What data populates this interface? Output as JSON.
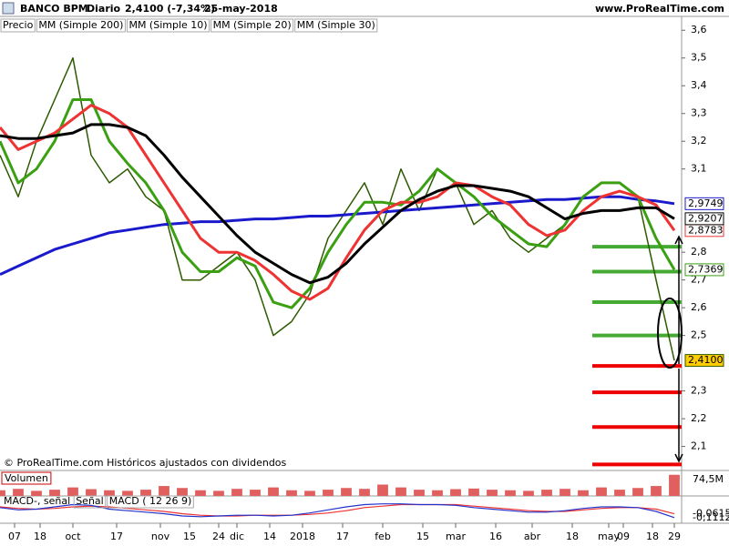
{
  "chart_data": {
    "type": "line",
    "header": {
      "symbol": "BANCO BPM",
      "period": "Diario",
      "last": "2,4100 (-7,34%)",
      "date": "25-may-2018",
      "site": "www.ProRealTime.com"
    },
    "footnote": "© ProRealTime.com Históricos ajustados con dividendos",
    "x": [
      0,
      5,
      10,
      15,
      20,
      25,
      30,
      35,
      40,
      45,
      50,
      55,
      60,
      65,
      70,
      75,
      80,
      85,
      90,
      95,
      100,
      105,
      110,
      115,
      120,
      125,
      130,
      135,
      140,
      145,
      150,
      155,
      160,
      165,
      170,
      175,
      180,
      185
    ],
    "xlim": [
      0,
      187
    ],
    "xticks": [
      {
        "value": 4,
        "label": "07"
      },
      {
        "value": 11,
        "label": "18"
      },
      {
        "value": 20,
        "label": "oct"
      },
      {
        "value": 32,
        "label": "17"
      },
      {
        "value": 44,
        "label": "nov"
      },
      {
        "value": 52,
        "label": "15"
      },
      {
        "value": 60,
        "label": "24"
      },
      {
        "value": 65,
        "label": "dic"
      },
      {
        "value": 74,
        "label": "14"
      },
      {
        "value": 83,
        "label": "2018"
      },
      {
        "value": 94,
        "label": "17"
      },
      {
        "value": 105,
        "label": "feb"
      },
      {
        "value": 116,
        "label": "15"
      },
      {
        "value": 125,
        "label": "mar"
      },
      {
        "value": 136,
        "label": "16"
      },
      {
        "value": 146,
        "label": "abr"
      },
      {
        "value": 157,
        "label": "18"
      },
      {
        "value": 167,
        "label": "may"
      },
      {
        "value": 171,
        "label": "09"
      },
      {
        "value": 179,
        "label": "18"
      },
      {
        "value": 185,
        "label": "29"
      }
    ],
    "ylim": [
      2.02,
      3.65
    ],
    "yticks": [
      {
        "value": 2.1,
        "label": "2,1"
      },
      {
        "value": 2.2,
        "label": "2,2"
      },
      {
        "value": 2.3,
        "label": "2,3"
      },
      {
        "value": 2.5,
        "label": "2,5"
      },
      {
        "value": 2.6,
        "label": "2,6"
      },
      {
        "value": 2.7,
        "label": "2,7"
      },
      {
        "value": 2.8,
        "label": "2,8"
      },
      {
        "value": 3.1,
        "label": "3,1"
      },
      {
        "value": 3.2,
        "label": "3,2"
      },
      {
        "value": 3.3,
        "label": "3,3"
      },
      {
        "value": 3.4,
        "label": "3,4"
      },
      {
        "value": 3.5,
        "label": "3,5"
      },
      {
        "value": 3.6,
        "label": "3,6"
      }
    ],
    "series": [
      {
        "name": "Precio",
        "color": "#2d5a00",
        "label_bg": "#ffcc00",
        "last_label": "2,4100",
        "values": [
          3.15,
          3.0,
          3.2,
          3.35,
          3.5,
          3.15,
          3.05,
          3.1,
          3.0,
          2.95,
          2.7,
          2.7,
          2.75,
          2.8,
          2.7,
          2.5,
          2.55,
          2.65,
          2.85,
          2.95,
          3.05,
          2.9,
          3.1,
          2.95,
          3.1,
          3.05,
          2.9,
          2.95,
          2.85,
          2.8,
          2.85,
          2.9,
          3.0,
          3.05,
          3.05,
          3.0,
          2.7,
          2.41
        ]
      },
      {
        "name": "MM (Simple 200)",
        "color": "#1a1acc",
        "last_label": "2,9749",
        "values": [
          2.72,
          2.75,
          2.78,
          2.81,
          2.83,
          2.85,
          2.87,
          2.88,
          2.89,
          2.9,
          2.905,
          2.91,
          2.91,
          2.915,
          2.92,
          2.92,
          2.925,
          2.93,
          2.93,
          2.935,
          2.94,
          2.945,
          2.95,
          2.955,
          2.96,
          2.965,
          2.97,
          2.975,
          2.98,
          2.985,
          2.99,
          2.99,
          2.995,
          3.0,
          3.0,
          2.99,
          2.985,
          2.9749
        ]
      },
      {
        "name": "MM (Simple 10)",
        "color": "#3aa012",
        "last_label": "2,7369",
        "values": [
          3.2,
          3.05,
          3.1,
          3.2,
          3.35,
          3.35,
          3.2,
          3.12,
          3.05,
          2.95,
          2.8,
          2.73,
          2.73,
          2.78,
          2.75,
          2.62,
          2.6,
          2.67,
          2.8,
          2.9,
          2.98,
          2.98,
          2.97,
          3.02,
          3.1,
          3.05,
          3.0,
          2.93,
          2.88,
          2.83,
          2.82,
          2.9,
          3.0,
          3.05,
          3.05,
          3.0,
          2.85,
          2.7369
        ]
      },
      {
        "name": "MM (Simple 20)",
        "color": "#ee3333",
        "last_label": "2,8783",
        "values": [
          3.25,
          3.17,
          3.2,
          3.23,
          3.28,
          3.33,
          3.3,
          3.25,
          3.15,
          3.05,
          2.95,
          2.85,
          2.8,
          2.8,
          2.77,
          2.72,
          2.66,
          2.63,
          2.67,
          2.78,
          2.88,
          2.95,
          2.98,
          2.98,
          3.0,
          3.05,
          3.04,
          3.0,
          2.97,
          2.9,
          2.86,
          2.88,
          2.95,
          3.0,
          3.02,
          3.0,
          2.97,
          2.8783
        ]
      },
      {
        "name": "MM (Simple 30)",
        "color": "#000000",
        "last_label": "2,9207",
        "values": [
          3.22,
          3.21,
          3.21,
          3.22,
          3.23,
          3.26,
          3.26,
          3.25,
          3.22,
          3.15,
          3.07,
          3.0,
          2.93,
          2.86,
          2.8,
          2.76,
          2.72,
          2.69,
          2.71,
          2.76,
          2.83,
          2.89,
          2.95,
          2.99,
          3.02,
          3.04,
          3.04,
          3.03,
          3.02,
          3.0,
          2.96,
          2.92,
          2.94,
          2.95,
          2.95,
          2.96,
          2.96,
          2.9207
        ]
      }
    ],
    "levels": [
      2.82,
      2.73,
      2.62,
      2.5,
      2.39,
      2.295,
      2.17,
      2.035
    ],
    "level_colors": [
      "#44aa33",
      "#44aa33",
      "#44aa33",
      "#44aa33",
      "#ee0000",
      "#ee0000",
      "#ee0000",
      "#ee0000"
    ],
    "volume": {
      "title": "Volumen",
      "color": "#e06060",
      "ylim": [
        0,
        80
      ],
      "last_label": "74,5M",
      "values": [
        20,
        25,
        18,
        22,
        30,
        24,
        20,
        18,
        22,
        35,
        28,
        20,
        18,
        25,
        22,
        30,
        20,
        18,
        22,
        28,
        25,
        40,
        30,
        22,
        20,
        24,
        26,
        22,
        20,
        18,
        22,
        25,
        20,
        30,
        22,
        28,
        35,
        74.5
      ]
    },
    "macd": {
      "title": "MACD-, señal",
      "ylim": [
        -0.15,
        0.15
      ],
      "series": [
        {
          "name": "Señal",
          "color": "#ee3333",
          "last_label": "-0,0615",
          "values": [
            0.03,
            0.01,
            0.0,
            0.01,
            0.03,
            0.04,
            0.03,
            0.01,
            -0.01,
            -0.03,
            -0.06,
            -0.08,
            -0.09,
            -0.09,
            -0.08,
            -0.08,
            -0.08,
            -0.07,
            -0.05,
            -0.02,
            0.02,
            0.04,
            0.06,
            0.06,
            0.06,
            0.06,
            0.04,
            0.02,
            0.0,
            -0.02,
            -0.03,
            -0.03,
            -0.01,
            0.01,
            0.02,
            0.02,
            0.0,
            -0.0615
          ]
        },
        {
          "name": "MACD ( 12 26 9)",
          "color": "#2233cc",
          "last_label": "-0,1112",
          "values": [
            0.02,
            -0.01,
            0.0,
            0.03,
            0.06,
            0.05,
            0.0,
            -0.02,
            -0.04,
            -0.06,
            -0.09,
            -0.1,
            -0.09,
            -0.08,
            -0.08,
            -0.09,
            -0.08,
            -0.05,
            -0.01,
            0.03,
            0.06,
            0.07,
            0.07,
            0.06,
            0.06,
            0.05,
            0.02,
            0.0,
            -0.02,
            -0.04,
            -0.04,
            -0.02,
            0.01,
            0.03,
            0.03,
            0.02,
            -0.03,
            -0.1112
          ]
        }
      ]
    }
  }
}
